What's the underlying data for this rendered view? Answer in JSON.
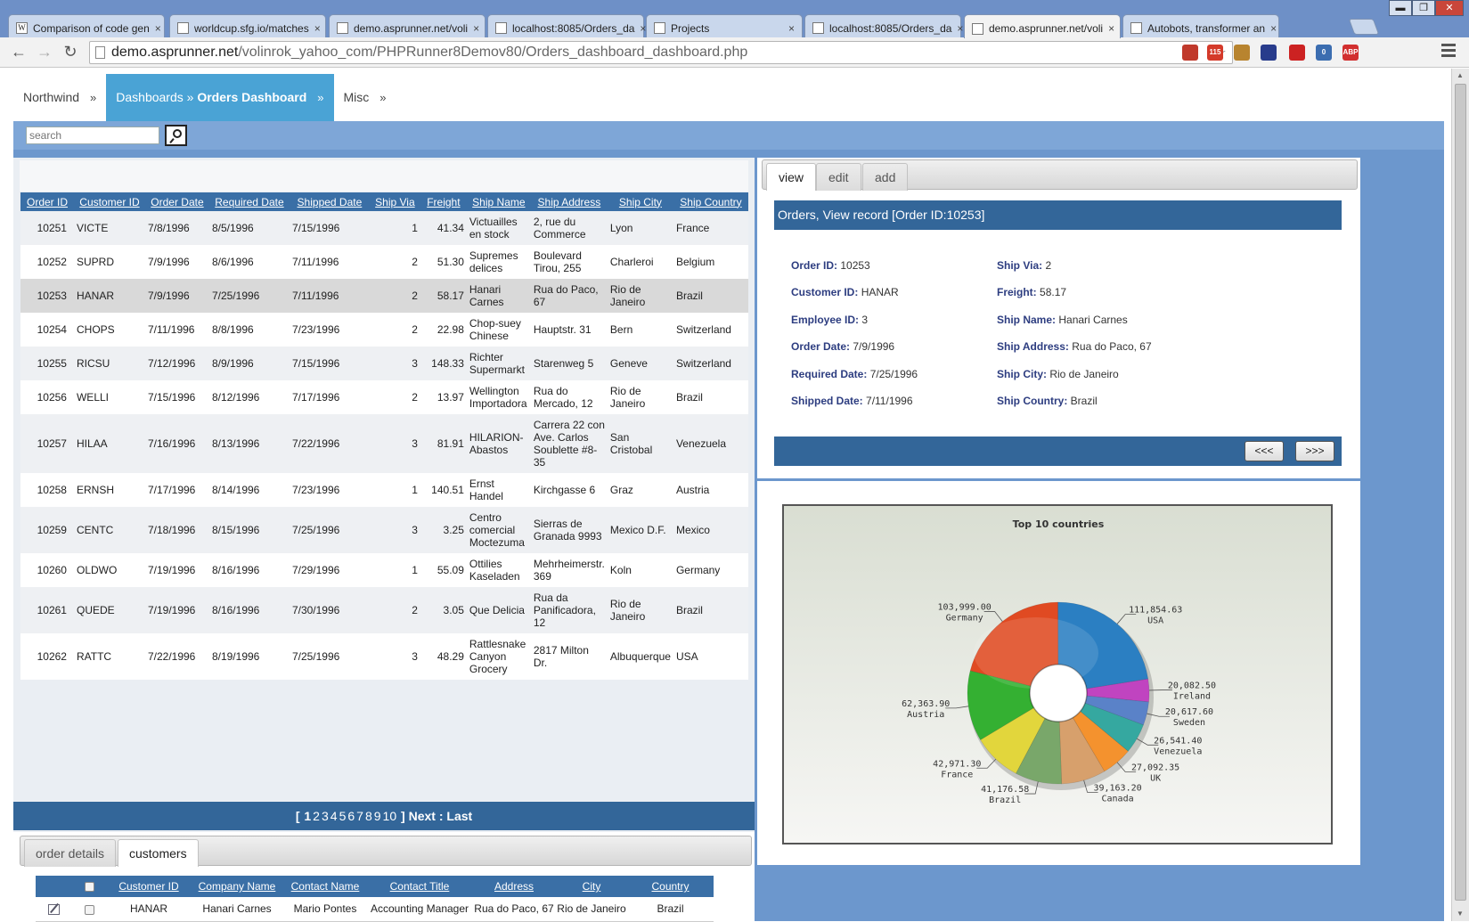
{
  "browser": {
    "tabs": [
      {
        "title": "Comparison of code gen",
        "icon": "wikipedia-icon",
        "active": false
      },
      {
        "title": "worldcup.sfg.io/matches",
        "icon": "page-icon",
        "active": false
      },
      {
        "title": "demo.asprunner.net/voli",
        "icon": "page-icon",
        "active": false
      },
      {
        "title": "localhost:8085/Orders_da",
        "icon": "page-icon",
        "active": false
      },
      {
        "title": "Projects",
        "icon": "page-icon",
        "active": false
      },
      {
        "title": "localhost:8085/Orders_da",
        "icon": "page-icon",
        "active": false
      },
      {
        "title": "demo.asprunner.net/voli",
        "icon": "page-icon",
        "active": true
      },
      {
        "title": "Autobots, transformer an",
        "icon": "page-icon",
        "active": false
      }
    ],
    "tab_close": "×",
    "url_host": "demo.asprunner.net",
    "url_path": "/volinrok_yahoo_com/PHPRunner8Demov80/Orders_dashboard_dashboard.php",
    "win_buttons": [
      "▬",
      "❐",
      "✕"
    ],
    "extensions": [
      {
        "name": "bookmark-extension-icon",
        "color": "#c0392b",
        "label": ""
      },
      {
        "name": "gmail-counter-icon",
        "color": "#d43a2a",
        "label": "115"
      },
      {
        "name": "cookie-icon",
        "color": "#b8842f",
        "label": ""
      },
      {
        "name": "flag-extension-icon",
        "color": "#283c8c",
        "label": ""
      },
      {
        "name": "record-extension-icon",
        "color": "#cc2222",
        "label": ""
      },
      {
        "name": "counter-extension-icon",
        "color": "#3b6db0",
        "label": "0"
      },
      {
        "name": "adblock-plus-icon",
        "color": "#d22f2f",
        "label": "ABP"
      }
    ]
  },
  "menu": {
    "items": [
      {
        "label": "Northwind",
        "bold": "",
        "suffix": "»"
      },
      {
        "label": "Dashboards » ",
        "bold": "Orders Dashboard",
        "suffix": "»"
      },
      {
        "label": "Misc",
        "bold": "",
        "suffix": "»"
      }
    ]
  },
  "search": {
    "placeholder": "search"
  },
  "grid": {
    "columns": [
      "Order ID",
      "Customer ID",
      "Order Date",
      "Required Date",
      "Shipped Date",
      "Ship Via",
      "Freight",
      "Ship Name",
      "Ship Address",
      "Ship City",
      "Ship Country"
    ],
    "rows": [
      [
        "10251",
        "VICTE",
        "7/8/1996",
        "8/5/1996",
        "7/15/1996",
        "1",
        "41.34",
        "Victuailles en stock",
        "2, rue du Commerce",
        "Lyon",
        "France"
      ],
      [
        "10252",
        "SUPRD",
        "7/9/1996",
        "8/6/1996",
        "7/11/1996",
        "2",
        "51.30",
        "Supremes delices",
        "Boulevard Tirou, 255",
        "Charleroi",
        "Belgium"
      ],
      [
        "10253",
        "HANAR",
        "7/9/1996",
        "7/25/1996",
        "7/11/1996",
        "2",
        "58.17",
        "Hanari Carnes",
        "Rua do Paco, 67",
        "Rio de Janeiro",
        "Brazil"
      ],
      [
        "10254",
        "CHOPS",
        "7/11/1996",
        "8/8/1996",
        "7/23/1996",
        "2",
        "22.98",
        "Chop-suey Chinese",
        "Hauptstr. 31",
        "Bern",
        "Switzerland"
      ],
      [
        "10255",
        "RICSU",
        "7/12/1996",
        "8/9/1996",
        "7/15/1996",
        "3",
        "148.33",
        "Richter Supermarkt",
        "Starenweg 5",
        "Geneve",
        "Switzerland"
      ],
      [
        "10256",
        "WELLI",
        "7/15/1996",
        "8/12/1996",
        "7/17/1996",
        "2",
        "13.97",
        "Wellington Importadora",
        "Rua do Mercado, 12",
        "Rio de Janeiro",
        "Brazil"
      ],
      [
        "10257",
        "HILAA",
        "7/16/1996",
        "8/13/1996",
        "7/22/1996",
        "3",
        "81.91",
        "HILARION-Abastos",
        "Carrera 22 con Ave. Carlos Soublette #8-35",
        "San Cristobal",
        "Venezuela"
      ],
      [
        "10258",
        "ERNSH",
        "7/17/1996",
        "8/14/1996",
        "7/23/1996",
        "1",
        "140.51",
        "Ernst Handel",
        "Kirchgasse 6",
        "Graz",
        "Austria"
      ],
      [
        "10259",
        "CENTC",
        "7/18/1996",
        "8/15/1996",
        "7/25/1996",
        "3",
        "3.25",
        "Centro comercial Moctezuma",
        "Sierras de Granada 9993",
        "Mexico D.F.",
        "Mexico"
      ],
      [
        "10260",
        "OLDWO",
        "7/19/1996",
        "8/16/1996",
        "7/29/1996",
        "1",
        "55.09",
        "Ottilies Kaseladen",
        "Mehrheimerstr. 369",
        "Koln",
        "Germany"
      ],
      [
        "10261",
        "QUEDE",
        "7/19/1996",
        "8/16/1996",
        "7/30/1996",
        "2",
        "3.05",
        "Que Delicia",
        "Rua da Panificadora, 12",
        "Rio de Janeiro",
        "Brazil"
      ],
      [
        "10262",
        "RATTC",
        "7/22/1996",
        "8/19/1996",
        "7/25/1996",
        "3",
        "48.29",
        "Rattlesnake Canyon Grocery",
        "2817 Milton Dr.",
        "Albuquerque",
        "USA"
      ]
    ],
    "selected_row": 2
  },
  "pager": {
    "open": "[",
    "pages": [
      "1",
      "2",
      "3",
      "4",
      "5",
      "6",
      "7",
      "8",
      "9",
      "10"
    ],
    "current": "1",
    "close": "]",
    "next": "Next",
    "sep": ":",
    "last": "Last"
  },
  "details": {
    "tabs": [
      "order details",
      "customers"
    ],
    "active_tab": 1,
    "columns": [
      "Customer ID",
      "Company Name",
      "Contact Name",
      "Contact Title",
      "Address",
      "City",
      "Country"
    ],
    "row": [
      "HANAR",
      "Hanari Carnes",
      "Mario Pontes",
      "Accounting Manager",
      "Rua do Paco, 67",
      "Rio de Janeiro",
      "Brazil"
    ]
  },
  "record": {
    "tabs": [
      "view",
      "edit",
      "add"
    ],
    "active_tab": 0,
    "header": "Orders, View record [Order ID:10253]",
    "fields_left": [
      {
        "label": "Order ID:",
        "value": "10253"
      },
      {
        "label": "Customer ID:",
        "value": "HANAR"
      },
      {
        "label": "Employee ID:",
        "value": "3"
      },
      {
        "label": "Order Date:",
        "value": "7/9/1996"
      },
      {
        "label": "Required Date:",
        "value": "7/25/1996"
      },
      {
        "label": "Shipped Date:",
        "value": "7/11/1996"
      }
    ],
    "fields_right": [
      {
        "label": "Ship Via:",
        "value": "2"
      },
      {
        "label": "Freight:",
        "value": "58.17"
      },
      {
        "label": "Ship Name:",
        "value": "Hanari Carnes"
      },
      {
        "label": "Ship Address:",
        "value": "Rua do Paco, 67"
      },
      {
        "label": "Ship City:",
        "value": "Rio de Janeiro"
      },
      {
        "label": "Ship Country:",
        "value": "Brazil"
      }
    ],
    "prev_label": "<<<",
    "next_label": ">>>"
  },
  "chart_data": {
    "type": "pie",
    "title": "Top 10 countries",
    "donut": true,
    "slices": [
      {
        "label": "USA",
        "value": 111854.63,
        "display": "111,854.63",
        "color": "#2b7fc2"
      },
      {
        "label": "Germany",
        "value": 103999.0,
        "display": "103,999.00",
        "color": "#e04a22"
      },
      {
        "label": "Austria",
        "value": 62363.9,
        "display": "62,363.90",
        "color": "#34b032"
      },
      {
        "label": "France",
        "value": 42971.3,
        "display": "42,971.30",
        "color": "#e2d63c"
      },
      {
        "label": "Brazil",
        "value": 41176.58,
        "display": "41,176.58",
        "color": "#79a76a"
      },
      {
        "label": "Canada",
        "value": 39163.2,
        "display": "39,163.20",
        "color": "#d7a06c"
      },
      {
        "label": "UK",
        "value": 27092.35,
        "display": "27,092.35",
        "color": "#f4922e"
      },
      {
        "label": "Venezuela",
        "value": 26541.4,
        "display": "26,541.40",
        "color": "#35a8a0"
      },
      {
        "label": "Sweden",
        "value": 20617.6,
        "display": "20,617.60",
        "color": "#5a82c8"
      },
      {
        "label": "Ireland",
        "value": 20082.5,
        "display": "20,082.50",
        "color": "#c044c0"
      }
    ],
    "start_label": "Ireland",
    "direction": "clockwise"
  }
}
